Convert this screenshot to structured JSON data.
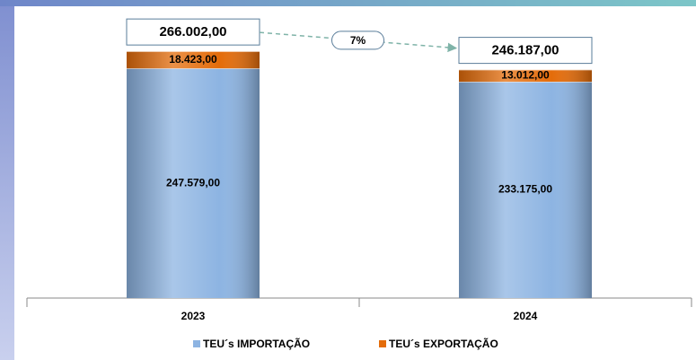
{
  "chart_data": {
    "type": "stacked_bar",
    "categories": [
      "2023",
      "2024"
    ],
    "series": [
      {
        "name": "TEU´s IMPORTAÇÃO",
        "color": "#8db4e2",
        "values": [
          247579,
          233175
        ],
        "value_labels": [
          "247.579,00",
          "233.175,00"
        ]
      },
      {
        "name": "TEU´s EXPORTAÇÃO",
        "color": "#e46c0a",
        "values": [
          18423,
          13012
        ],
        "value_labels": [
          "18.423,00",
          "13.012,00"
        ]
      }
    ],
    "total_labels": [
      "266.002,00",
      "246.187,00"
    ],
    "annotation": "7%",
    "ylim": [
      0,
      300000
    ],
    "legend": "bottom"
  }
}
